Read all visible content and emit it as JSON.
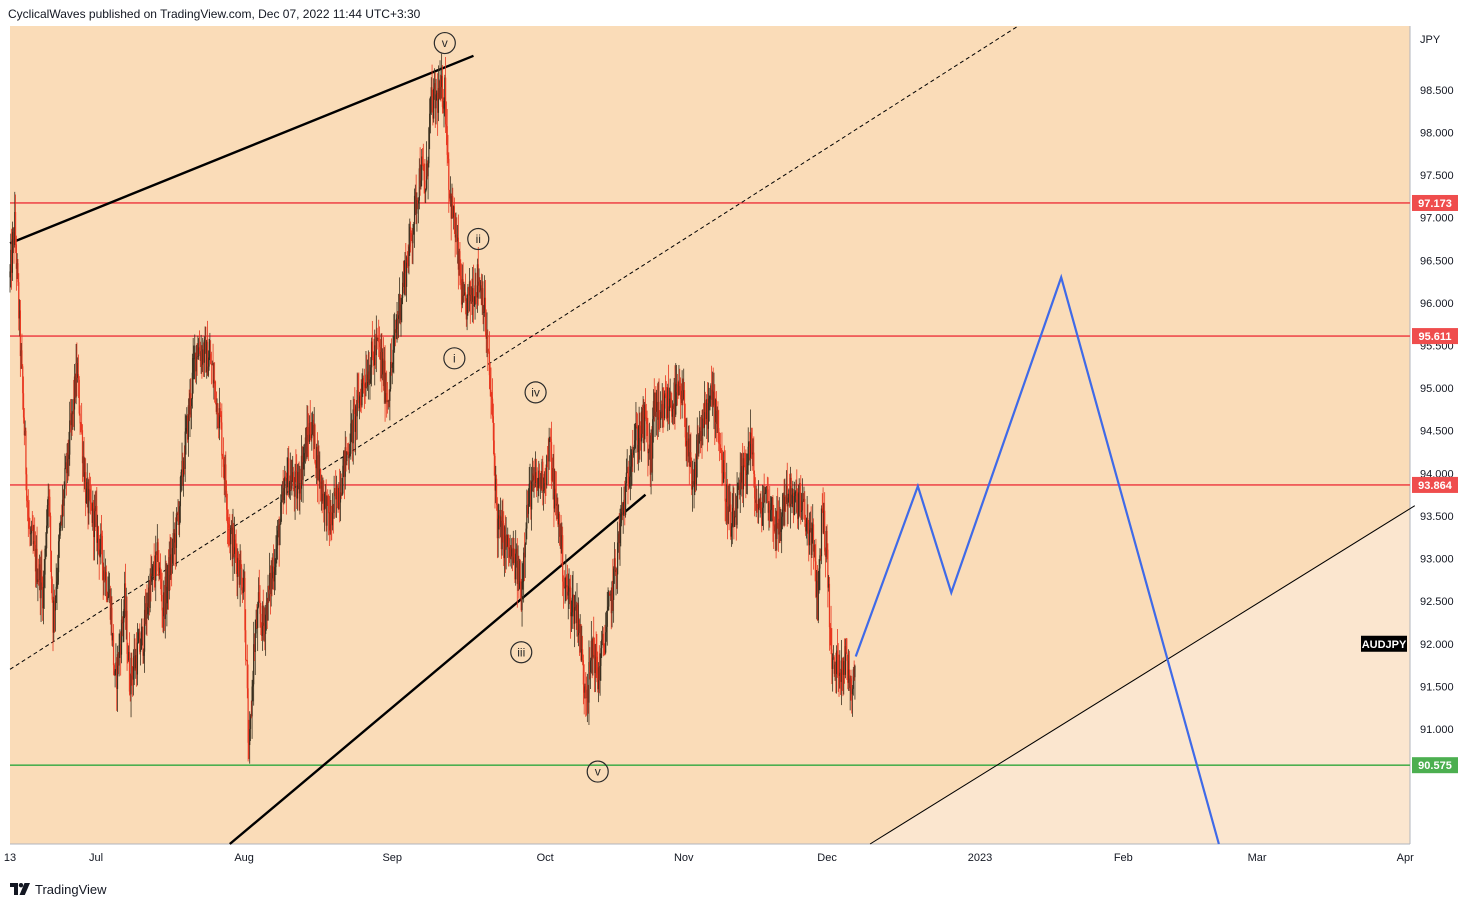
{
  "header": {
    "text": "CyclicalWaves published on TradingView.com, Dec 07, 2022 11:44 UTC+3:30"
  },
  "footer": {
    "brand": "TradingView"
  },
  "colors": {
    "background_channel": "#fadcb8",
    "background_lower": "#fbe6cf",
    "candle_up": "#3a3020",
    "candle_down": "#e8361f",
    "resistance": "#ef4d4d",
    "support": "#4caf50",
    "projection": "#3f6ae8",
    "trendline": "#000000"
  },
  "chart_data": {
    "type": "candlestick",
    "symbol": "AUDJPY",
    "currency_label": "JPY",
    "x_axis": {
      "range": [
        "2022-06-13",
        "2023-04-02"
      ],
      "ticks": [
        {
          "date": "2022-06-13",
          "label": "13"
        },
        {
          "date": "2022-07-01",
          "label": "Jul"
        },
        {
          "date": "2022-08-01",
          "label": "Aug"
        },
        {
          "date": "2022-09-01",
          "label": "Sep"
        },
        {
          "date": "2022-10-03",
          "label": "Oct"
        },
        {
          "date": "2022-11-01",
          "label": "Nov"
        },
        {
          "date": "2022-12-01",
          "label": "Dec"
        },
        {
          "date": "2023-01-02",
          "label": "2023"
        },
        {
          "date": "2023-02-01",
          "label": "Feb"
        },
        {
          "date": "2023-03-01",
          "label": "Mar"
        },
        {
          "date": "2023-04-01",
          "label": "Apr"
        }
      ]
    },
    "y_axis": {
      "range": [
        89.65,
        99.25
      ],
      "ticks": [
        "91.000",
        "91.500",
        "92.000",
        "92.500",
        "93.000",
        "93.500",
        "94.000",
        "94.500",
        "95.000",
        "95.500",
        "96.000",
        "96.500",
        "97.000",
        "97.500",
        "98.000",
        "98.500"
      ]
    },
    "price_path": [
      [
        "2022-06-13",
        96.3
      ],
      [
        "2022-06-14",
        96.9
      ],
      [
        "2022-06-16",
        94.5
      ],
      [
        "2022-06-17",
        93.3
      ],
      [
        "2022-06-20",
        92.6
      ],
      [
        "2022-06-21",
        93.9
      ],
      [
        "2022-06-22",
        92.3
      ],
      [
        "2022-06-24",
        93.6
      ],
      [
        "2022-06-27",
        95.2
      ],
      [
        "2022-06-29",
        93.7
      ],
      [
        "2022-07-01",
        93.4
      ],
      [
        "2022-07-04",
        92.5
      ],
      [
        "2022-07-05",
        91.5
      ],
      [
        "2022-07-07",
        92.5
      ],
      [
        "2022-07-08",
        91.6
      ],
      [
        "2022-07-11",
        92.1
      ],
      [
        "2022-07-12",
        92.6
      ],
      [
        "2022-07-14",
        93.0
      ],
      [
        "2022-07-15",
        92.4
      ],
      [
        "2022-07-18",
        93.4
      ],
      [
        "2022-07-20",
        94.5
      ],
      [
        "2022-07-22",
        95.5
      ],
      [
        "2022-07-25",
        95.3
      ],
      [
        "2022-07-27",
        94.6
      ],
      [
        "2022-07-29",
        93.3
      ],
      [
        "2022-08-01",
        92.7
      ],
      [
        "2022-08-02",
        90.6
      ],
      [
        "2022-08-03",
        91.9
      ],
      [
        "2022-08-04",
        92.4
      ],
      [
        "2022-08-05",
        92.2
      ],
      [
        "2022-08-08",
        93.2
      ],
      [
        "2022-08-10",
        94.0
      ],
      [
        "2022-08-12",
        93.8
      ],
      [
        "2022-08-15",
        94.6
      ],
      [
        "2022-08-17",
        93.9
      ],
      [
        "2022-08-19",
        93.4
      ],
      [
        "2022-08-22",
        94.1
      ],
      [
        "2022-08-24",
        94.6
      ],
      [
        "2022-08-26",
        95.1
      ],
      [
        "2022-08-29",
        95.5
      ],
      [
        "2022-08-30",
        95.2
      ],
      [
        "2022-08-31",
        94.9
      ],
      [
        "2022-09-01",
        95.3
      ],
      [
        "2022-09-02",
        95.8
      ],
      [
        "2022-09-05",
        96.8
      ],
      [
        "2022-09-07",
        97.6
      ],
      [
        "2022-09-08",
        97.3
      ],
      [
        "2022-09-09",
        98.3
      ],
      [
        "2022-09-12",
        98.5
      ],
      [
        "2022-09-13",
        97.3
      ],
      [
        "2022-09-14",
        96.9
      ],
      [
        "2022-09-15",
        96.4
      ],
      [
        "2022-09-16",
        95.9
      ],
      [
        "2022-09-19",
        96.3
      ],
      [
        "2022-09-20",
        96.1
      ],
      [
        "2022-09-21",
        95.4
      ],
      [
        "2022-09-22",
        94.6
      ],
      [
        "2022-09-23",
        93.4
      ],
      [
        "2022-09-26",
        93.0
      ],
      [
        "2022-09-27",
        92.9
      ],
      [
        "2022-09-28",
        92.6
      ],
      [
        "2022-09-29",
        93.5
      ],
      [
        "2022-09-30",
        93.8
      ],
      [
        "2022-10-03",
        94.0
      ],
      [
        "2022-10-04",
        94.3
      ],
      [
        "2022-10-05",
        93.7
      ],
      [
        "2022-10-06",
        93.4
      ],
      [
        "2022-10-07",
        92.7
      ],
      [
        "2022-10-10",
        92.3
      ],
      [
        "2022-10-11",
        91.6
      ],
      [
        "2022-10-12",
        91.5
      ],
      [
        "2022-10-13",
        92.0
      ],
      [
        "2022-10-14",
        91.6
      ],
      [
        "2022-10-17",
        92.6
      ],
      [
        "2022-10-18",
        93.0
      ],
      [
        "2022-10-19",
        93.5
      ],
      [
        "2022-10-20",
        93.8
      ],
      [
        "2022-10-21",
        94.3
      ],
      [
        "2022-10-24",
        94.6
      ],
      [
        "2022-10-25",
        94.1
      ],
      [
        "2022-10-26",
        94.9
      ],
      [
        "2022-10-27",
        94.5
      ],
      [
        "2022-10-28",
        94.8
      ],
      [
        "2022-10-31",
        94.9
      ],
      [
        "2022-11-01",
        94.8
      ],
      [
        "2022-11-02",
        94.2
      ],
      [
        "2022-11-03",
        93.7
      ],
      [
        "2022-11-04",
        94.4
      ],
      [
        "2022-11-07",
        94.9
      ],
      [
        "2022-11-08",
        94.7
      ],
      [
        "2022-11-09",
        94.1
      ],
      [
        "2022-11-10",
        93.7
      ],
      [
        "2022-11-11",
        93.3
      ],
      [
        "2022-11-14",
        94.1
      ],
      [
        "2022-11-15",
        94.4
      ],
      [
        "2022-11-16",
        93.7
      ],
      [
        "2022-11-17",
        93.5
      ],
      [
        "2022-11-18",
        93.8
      ],
      [
        "2022-11-21",
        93.3
      ],
      [
        "2022-11-22",
        93.7
      ],
      [
        "2022-11-23",
        93.8
      ],
      [
        "2022-11-24",
        93.6
      ],
      [
        "2022-11-25",
        93.7
      ],
      [
        "2022-11-28",
        93.2
      ],
      [
        "2022-11-29",
        92.5
      ],
      [
        "2022-11-30",
        93.6
      ],
      [
        "2022-12-01",
        93.0
      ],
      [
        "2022-12-02",
        91.7
      ],
      [
        "2022-12-05",
        91.8
      ],
      [
        "2022-12-06",
        91.5
      ],
      [
        "2022-12-07",
        91.85
      ]
    ],
    "horizontal_levels": [
      {
        "price": 97.173,
        "label": "97.173",
        "color": "#ef4d4d"
      },
      {
        "price": 95.611,
        "label": "95.611",
        "color": "#ef4d4d"
      },
      {
        "price": 93.864,
        "label": "93.864",
        "color": "#ef4d4d"
      },
      {
        "price": 90.575,
        "label": "90.575",
        "color": "#4caf50"
      }
    ],
    "trendlines": [
      {
        "from": [
          "2022-06-13",
          96.7
        ],
        "to": [
          "2022-09-18",
          98.9
        ],
        "style": "solid",
        "weight": "thick"
      },
      {
        "from": [
          "2022-07-29",
          89.65
        ],
        "to": [
          "2022-10-24",
          93.75
        ],
        "style": "solid",
        "weight": "thick"
      },
      {
        "from": [
          "2022-06-13",
          91.7
        ],
        "to": [
          "2023-01-10",
          99.25
        ],
        "style": "dashed",
        "weight": "thin"
      },
      {
        "from": [
          "2022-12-10",
          89.65
        ],
        "to": [
          "2023-04-03",
          93.62
        ],
        "style": "solid",
        "weight": "thin"
      }
    ],
    "projection": [
      [
        "2022-12-07",
        91.85
      ],
      [
        "2022-12-20",
        93.85
      ],
      [
        "2022-12-27",
        92.6
      ],
      [
        "2023-01-19",
        96.3
      ],
      [
        "2023-02-21",
        89.65
      ]
    ],
    "wave_labels": [
      {
        "label": "v",
        "date": "2022-09-12",
        "price": 99.05
      },
      {
        "label": "ii",
        "date": "2022-09-19",
        "price": 96.75
      },
      {
        "label": "i",
        "date": "2022-09-14",
        "price": 95.35
      },
      {
        "label": "iv",
        "date": "2022-10-01",
        "price": 94.95
      },
      {
        "label": "iii",
        "date": "2022-09-28",
        "price": 91.9
      },
      {
        "label": "v",
        "date": "2022-10-14",
        "price": 90.5
      }
    ],
    "symbol_tag": {
      "text": "AUDJPY",
      "price": 92.0
    }
  }
}
